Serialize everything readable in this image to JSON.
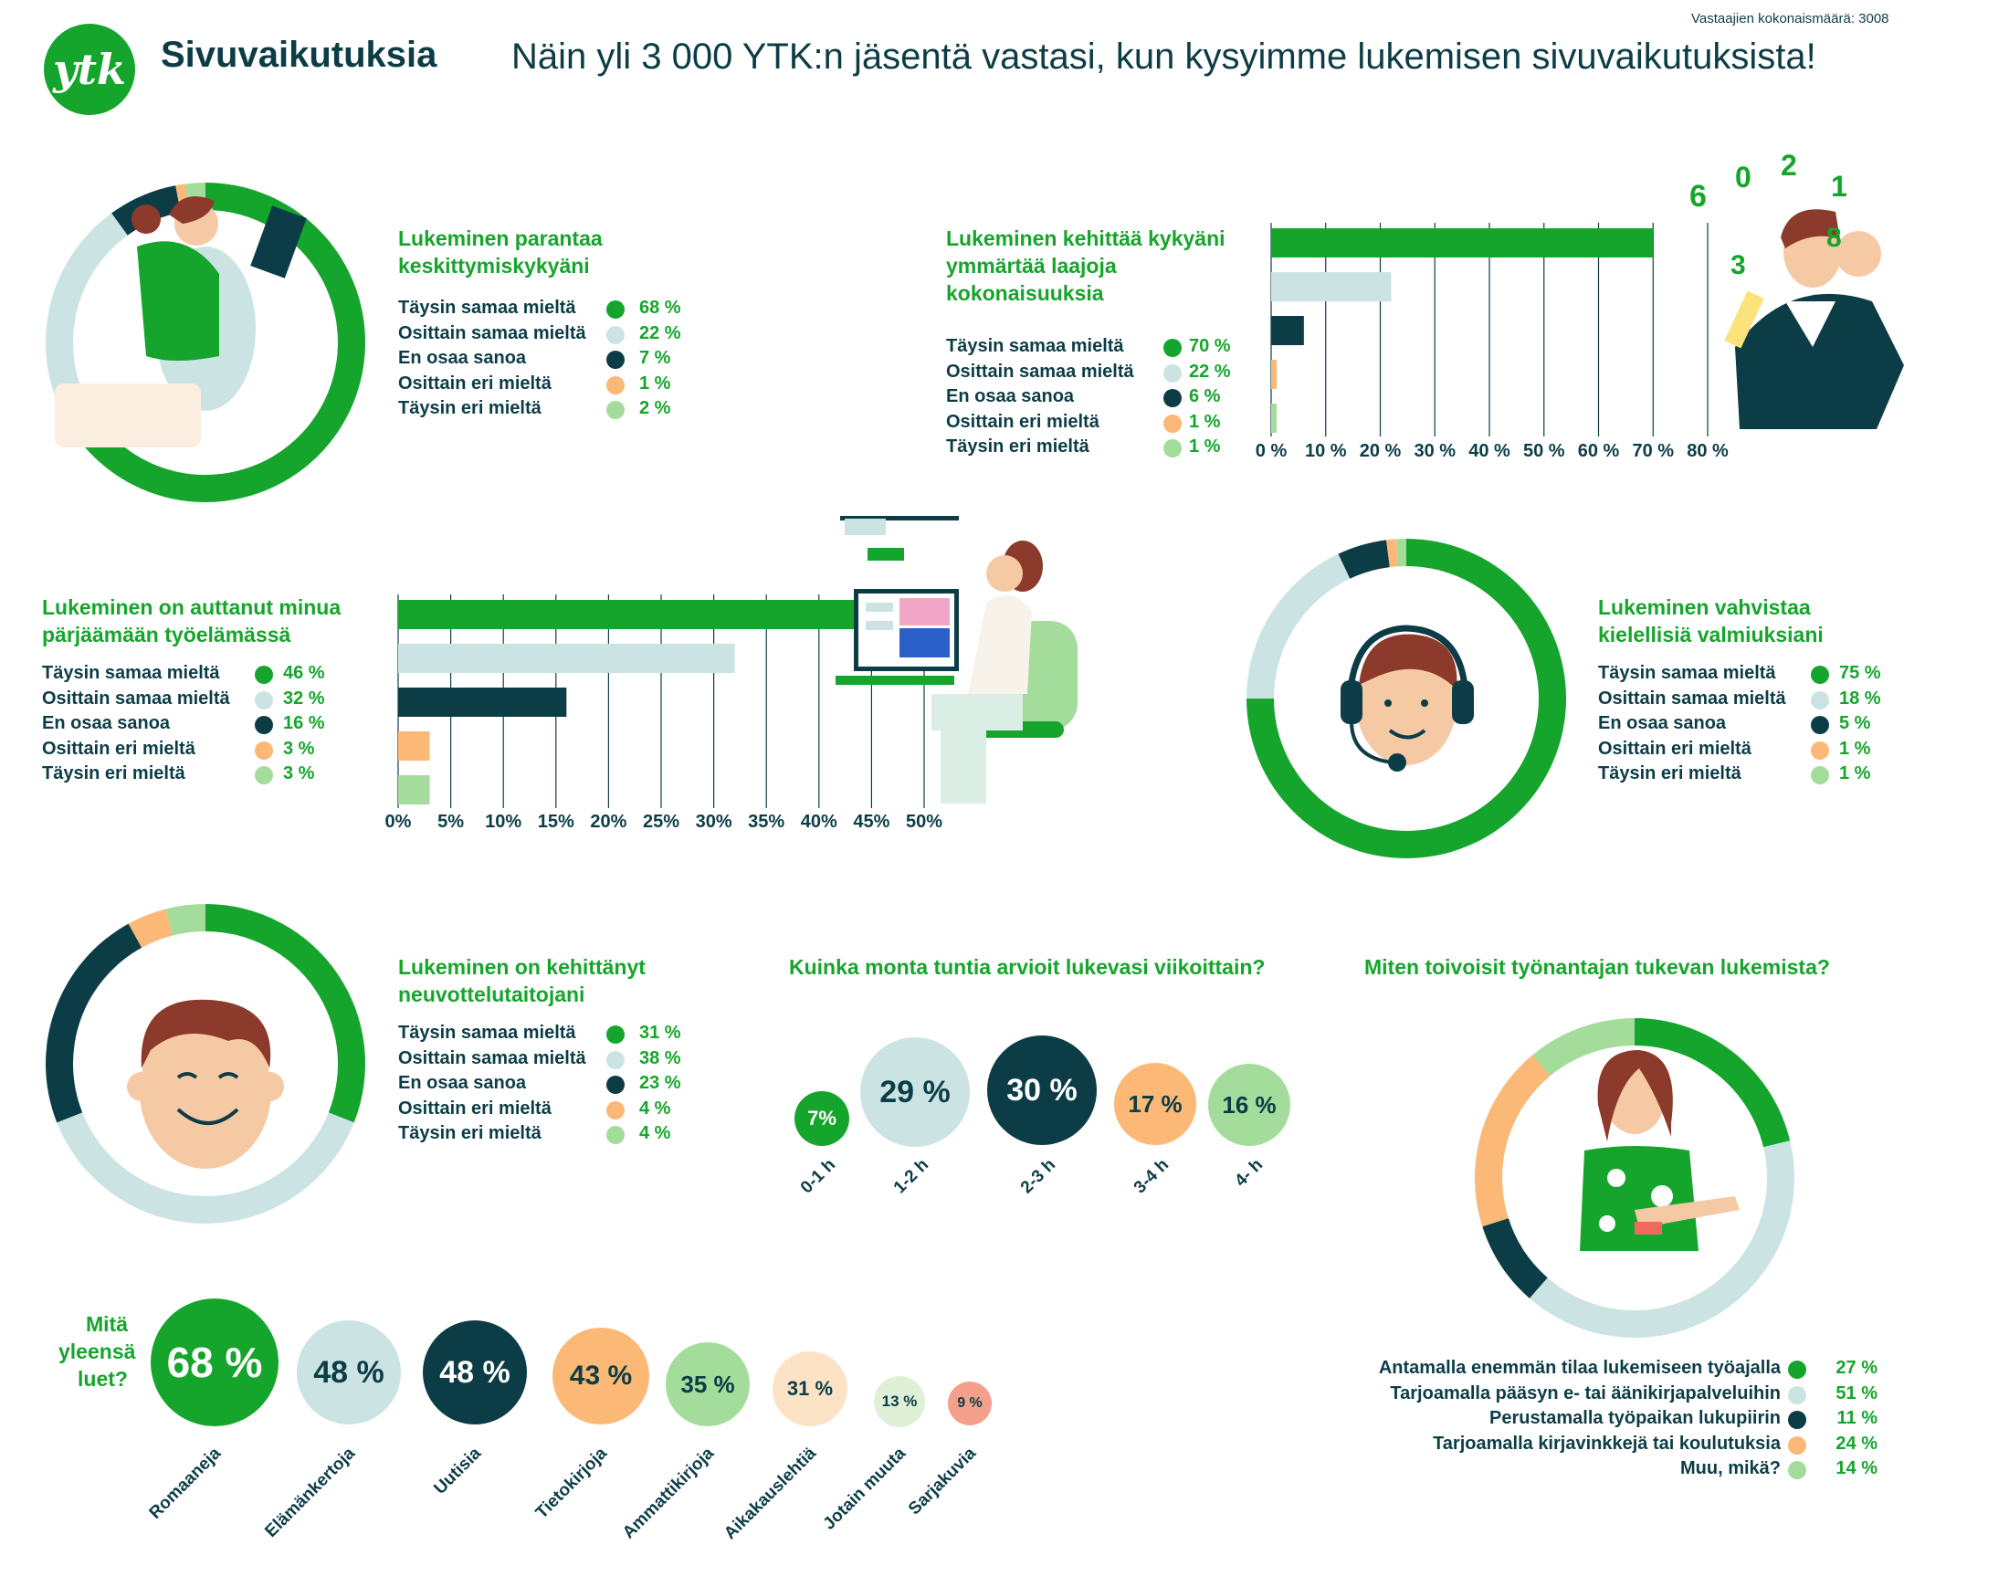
{
  "header": {
    "logo_text": "ytk",
    "brand": "Sivuvaikutuksia",
    "headline": "Näin yli 3 000 YTK:n jäsentä vastasi, kun kysyimme lukemisen sivuvaikutuksista!",
    "respondents": "Vastaajien kokonaismäärä: 3008"
  },
  "colors": {
    "green": "#16a52c",
    "light_blue": "#cbe4e3",
    "dark": "#0c3d47",
    "orange": "#fbb876",
    "light_green": "#a4dc9b",
    "peach": "#fde3c6",
    "pale_green": "#dff0d6",
    "salmon": "#f5a08c"
  },
  "answer_labels": [
    "Täysin samaa mieltä",
    "Osittain samaa mieltä",
    "En osaa sanoa",
    "Osittain eri mieltä",
    "Täysin eri mieltä"
  ],
  "chart_data": [
    {
      "id": "q1",
      "type": "pie",
      "title": "Lukeminen parantaa keskittymiskykyäni",
      "categories": [
        "Täysin samaa mieltä",
        "Osittain samaa mieltä",
        "En osaa sanoa",
        "Osittain eri mieltä",
        "Täysin eri mieltä"
      ],
      "values": [
        68,
        22,
        7,
        1,
        2
      ],
      "value_labels": [
        "68 %",
        "22 %",
        "7 %",
        "1 %",
        "2 %"
      ]
    },
    {
      "id": "q2",
      "type": "bar",
      "title": "Lukeminen kehittää kykyäni ymmärtää laajoja kokonaisuuksia",
      "categories": [
        "Täysin samaa mieltä",
        "Osittain samaa mieltä",
        "En osaa sanoa",
        "Osittain eri mieltä",
        "Täysin eri mieltä"
      ],
      "values": [
        70,
        22,
        6,
        1,
        1
      ],
      "value_labels": [
        "70 %",
        "22 %",
        "6 %",
        "1 %",
        "1 %"
      ],
      "xlim": [
        0,
        80
      ],
      "ticks": [
        0,
        10,
        20,
        30,
        40,
        50,
        60,
        70,
        80
      ],
      "tick_labels": [
        "0 %",
        "10 %",
        "20 %",
        "30 %",
        "40 %",
        "50 %",
        "60 %",
        "70 %",
        "80 %"
      ]
    },
    {
      "id": "q3",
      "type": "bar",
      "title": "Lukeminen on auttanut minua pärjäämään työelämässä",
      "categories": [
        "Täysin samaa mieltä",
        "Osittain samaa mieltä",
        "En osaa sanoa",
        "Osittain eri mieltä",
        "Täysin eri mieltä"
      ],
      "values": [
        46,
        32,
        16,
        3,
        3
      ],
      "value_labels": [
        "46 %",
        "32 %",
        "16 %",
        "3 %",
        "3 %"
      ],
      "xlim": [
        0,
        50
      ],
      "ticks": [
        0,
        5,
        10,
        15,
        20,
        25,
        30,
        35,
        40,
        45,
        50
      ],
      "tick_labels": [
        "0%",
        "5%",
        "10%",
        "15%",
        "20%",
        "25%",
        "30%",
        "35%",
        "40%",
        "45%",
        "50%"
      ]
    },
    {
      "id": "q4",
      "type": "pie",
      "title": "Lukeminen vahvistaa kielellisiä valmiuksiani",
      "categories": [
        "Täysin samaa mieltä",
        "Osittain samaa mieltä",
        "En osaa sanoa",
        "Osittain eri mieltä",
        "Täysin eri mieltä"
      ],
      "values": [
        75,
        18,
        5,
        1,
        1
      ],
      "value_labels": [
        "75 %",
        "18 %",
        "5 %",
        "1 %",
        "1 %"
      ]
    },
    {
      "id": "q5",
      "type": "pie",
      "title": "Lukeminen on kehittänyt neuvottelutaitojani",
      "categories": [
        "Täysin samaa mieltä",
        "Osittain samaa mieltä",
        "En osaa sanoa",
        "Osittain eri mieltä",
        "Täysin eri mieltä"
      ],
      "values": [
        31,
        38,
        23,
        4,
        4
      ],
      "value_labels": [
        "31 %",
        "38 %",
        "23 %",
        "4 %",
        "4 %"
      ]
    },
    {
      "id": "q6",
      "type": "scatter",
      "title": "Kuinka monta tuntia arvioit lukevasi viikoittain?",
      "categories": [
        "0-1 h",
        "1-2 h",
        "2-3 h",
        "3-4 h",
        "4- h"
      ],
      "values": [
        7,
        29,
        30,
        17,
        16
      ],
      "value_labels": [
        "7%",
        "29 %",
        "30 %",
        "17 %",
        "16 %"
      ]
    },
    {
      "id": "q7",
      "type": "pie",
      "title": "Miten toivoisit työnantajan tukevan lukemista?",
      "categories": [
        "Antamalla enemmän tilaa lukemiseen työajalla",
        "Tarjoamalla pääsyn e- tai äänikirjapalveluihin",
        "Perustamalla työpaikan lukupiirin",
        "Tarjoamalla kirjavinkkejä tai koulutuksia",
        "Muu, mikä?"
      ],
      "values": [
        27,
        51,
        11,
        24,
        14
      ],
      "value_labels": [
        "27 %",
        "51 %",
        "11 %",
        "24 %",
        "14 %"
      ]
    },
    {
      "id": "q8",
      "type": "scatter",
      "title": "Mitä yleensä luet?",
      "categories": [
        "Romaaneja",
        "Elämänkertoja",
        "Uutisia",
        "Tietokirjoja",
        "Ammattikirjoja",
        "Aikakauslehtiä",
        "Jotain muuta",
        "Sarjakuvia"
      ],
      "values": [
        68,
        48,
        48,
        43,
        35,
        31,
        13,
        9
      ],
      "value_labels": [
        "68 %",
        "48 %",
        "48 %",
        "43 %",
        "35 %",
        "31 %",
        "13 %",
        "9 %"
      ]
    }
  ]
}
